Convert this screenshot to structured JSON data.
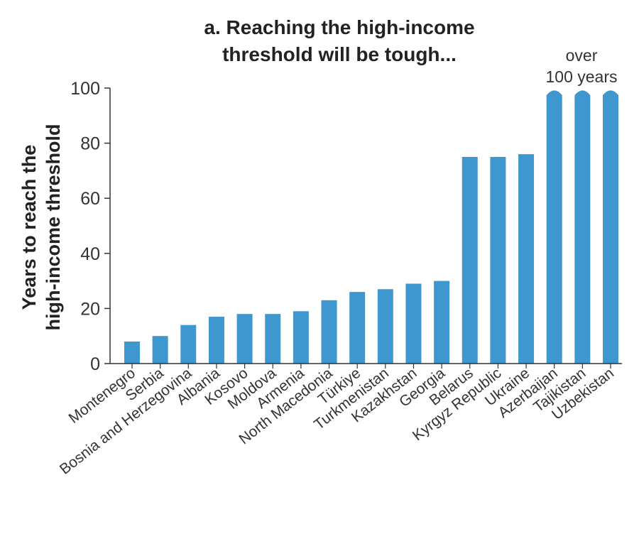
{
  "chart_data": {
    "type": "bar",
    "title_lines": [
      "a. Reaching the high-income",
      "threshold will be tough..."
    ],
    "ylabel_lines": [
      "Years to reach the",
      "high-income threshold"
    ],
    "xlabel": "",
    "ylim": [
      0,
      100
    ],
    "yticks": [
      0,
      20,
      40,
      60,
      80,
      100
    ],
    "grid": false,
    "categories": [
      "Montenegro",
      "Serbia",
      "Bosnia and Herzegovina",
      "Albania",
      "Kosovo",
      "Moldova",
      "Armenia",
      "North Macedonia",
      "Türkiye",
      "Turkmenistan",
      "Kazakhstan",
      "Georgia",
      "Belarus",
      "Kyrgyz Republic",
      "Ukraine",
      "Azerbaijan",
      "Tajikistan",
      "Uzbekistan"
    ],
    "values": [
      8,
      10,
      14,
      17,
      18,
      18,
      19,
      23,
      26,
      27,
      29,
      30,
      75,
      75,
      76,
      100,
      100,
      100
    ],
    "truncated": [
      false,
      false,
      false,
      false,
      false,
      false,
      false,
      false,
      false,
      false,
      false,
      false,
      false,
      false,
      false,
      true,
      true,
      true
    ],
    "annotation_lines": [
      "over",
      "100 years"
    ],
    "bar_color": "#3f97cf",
    "axis_color": "#333333"
  }
}
